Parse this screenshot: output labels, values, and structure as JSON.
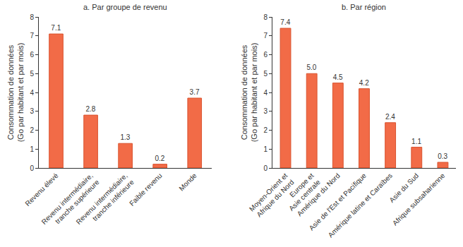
{
  "chart_data": [
    {
      "type": "bar",
      "title": "a. Par groupe de revenu",
      "categories": [
        "Revenu élevé",
        "Revenu intermédiaire,\ntranche supérieure",
        "Revenu intermédiaire,\ntranche inférieure",
        "Faible revenu",
        "Monde"
      ],
      "values": [
        7.1,
        2.8,
        1.3,
        0.2,
        3.7
      ],
      "value_labels": [
        "7.1",
        "2.8",
        "1.3",
        "0.2",
        "3.7"
      ],
      "y_label": "Consommation de données\n(Go par habitant et par mois)",
      "color": "#f26b47",
      "ylim": [
        0,
        8
      ],
      "yticks": [
        0,
        1,
        2,
        3,
        4,
        5,
        6,
        7,
        8
      ],
      "grid": false,
      "data_labels": true
    },
    {
      "type": "bar",
      "title": "b. Par région",
      "categories": [
        "Moyen-Orient et\nAfrique du Nord",
        "Europe et\nAsie centrale",
        "Amérique du Nord",
        "Asie de l'Est et Pacifique",
        "Amérique latine et Caraïbes",
        "Asie du Sud",
        "Afrique subsaharienne"
      ],
      "values": [
        7.4,
        5.0,
        4.5,
        4.2,
        2.4,
        1.1,
        0.3
      ],
      "value_labels": [
        "7.4",
        "5.0",
        "4.5",
        "4.2",
        "2.4",
        "1.1",
        "0.3"
      ],
      "y_label": "Consommation de données\n(Go par habitant et par mois)",
      "color": "#f26b47",
      "ylim": [
        0,
        8
      ],
      "yticks": [
        0,
        1,
        2,
        3,
        4,
        5,
        6,
        7,
        8
      ],
      "grid": false,
      "data_labels": true
    }
  ]
}
